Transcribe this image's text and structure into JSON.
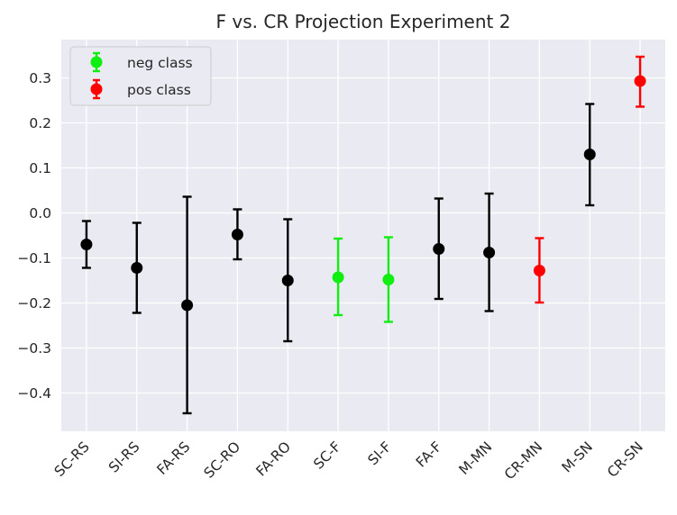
{
  "chart_data": {
    "type": "errorbar",
    "title": "F vs. CR Projection Experiment 2",
    "xlabel": "",
    "ylabel": "",
    "categories": [
      "SC-RS",
      "SI-RS",
      "FA-RS",
      "SC-RO",
      "FA-RO",
      "SC-F",
      "SI-F",
      "FA-F",
      "M-MN",
      "CR-MN",
      "M-SN",
      "CR-SN"
    ],
    "means": [
      -0.07,
      -0.122,
      -0.205,
      -0.048,
      -0.15,
      -0.143,
      -0.148,
      -0.08,
      -0.088,
      -0.128,
      0.13,
      0.293
    ],
    "lower": [
      -0.122,
      -0.222,
      -0.445,
      -0.103,
      -0.285,
      -0.227,
      -0.242,
      -0.191,
      -0.218,
      -0.199,
      0.017,
      0.236
    ],
    "upper": [
      -0.018,
      -0.022,
      0.036,
      0.008,
      -0.014,
      -0.057,
      -0.054,
      0.032,
      0.043,
      -0.056,
      0.242,
      0.347
    ],
    "point_class": [
      "other",
      "other",
      "other",
      "other",
      "other",
      "neg",
      "neg",
      "other",
      "other",
      "pos",
      "other",
      "pos"
    ],
    "ylim": [
      -0.485,
      0.385
    ],
    "yticks": [
      -0.4,
      -0.3,
      -0.2,
      -0.1,
      0.0,
      0.1,
      0.2,
      0.3
    ],
    "ytick_labels": [
      "−0.4",
      "−0.3",
      "−0.2",
      "−0.1",
      "0.0",
      "0.1",
      "0.2",
      "0.3"
    ],
    "grid": true,
    "legend": {
      "position": "upper-left",
      "entries": [
        {
          "label": "neg class",
          "key": "neg"
        },
        {
          "label": "pos class",
          "key": "pos"
        }
      ]
    },
    "colors": {
      "neg": "#11ee11",
      "pos": "#ff0000",
      "other": "#000000",
      "background": "#eaeaf2",
      "grid": "#ffffff"
    }
  }
}
